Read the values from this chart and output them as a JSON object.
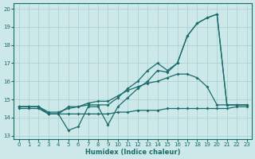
{
  "xlabel": "Humidex (Indice chaleur)",
  "background_color": "#cce8e8",
  "line_color": "#1a6b6b",
  "grid_color": "#aacece",
  "xlim": [
    -0.5,
    23.5
  ],
  "ylim": [
    12.8,
    20.3
  ],
  "yticks": [
    13,
    14,
    15,
    16,
    17,
    18,
    19,
    20
  ],
  "xticks": [
    0,
    1,
    2,
    3,
    4,
    5,
    6,
    7,
    8,
    9,
    10,
    11,
    12,
    13,
    14,
    15,
    16,
    17,
    18,
    19,
    20,
    21,
    22,
    23
  ],
  "series1": [
    14.6,
    14.6,
    14.6,
    14.2,
    14.2,
    14.6,
    14.6,
    14.7,
    14.7,
    14.7,
    15.1,
    15.6,
    16.0,
    16.6,
    17.0,
    16.6,
    17.0,
    18.5,
    19.2,
    19.5,
    19.7,
    14.7,
    14.7,
    14.7
  ],
  "series2": [
    14.6,
    14.6,
    14.6,
    14.2,
    14.2,
    13.3,
    13.5,
    14.6,
    14.6,
    13.6,
    14.6,
    15.1,
    15.6,
    16.0,
    16.6,
    16.5,
    17.0,
    18.5,
    19.2,
    19.5,
    19.7,
    14.7,
    14.7,
    14.7
  ],
  "series3": [
    14.6,
    14.6,
    14.6,
    14.3,
    14.3,
    14.5,
    14.6,
    14.8,
    14.9,
    14.9,
    15.2,
    15.5,
    15.7,
    15.9,
    16.0,
    16.2,
    16.4,
    16.4,
    16.2,
    15.7,
    14.7,
    14.7,
    null,
    null
  ],
  "series4": [
    14.5,
    14.5,
    14.5,
    14.2,
    14.2,
    14.2,
    14.2,
    14.2,
    14.2,
    14.2,
    14.3,
    14.3,
    14.4,
    14.4,
    14.4,
    14.5,
    14.5,
    14.5,
    14.5,
    14.5,
    14.5,
    14.5,
    14.6,
    14.6
  ]
}
